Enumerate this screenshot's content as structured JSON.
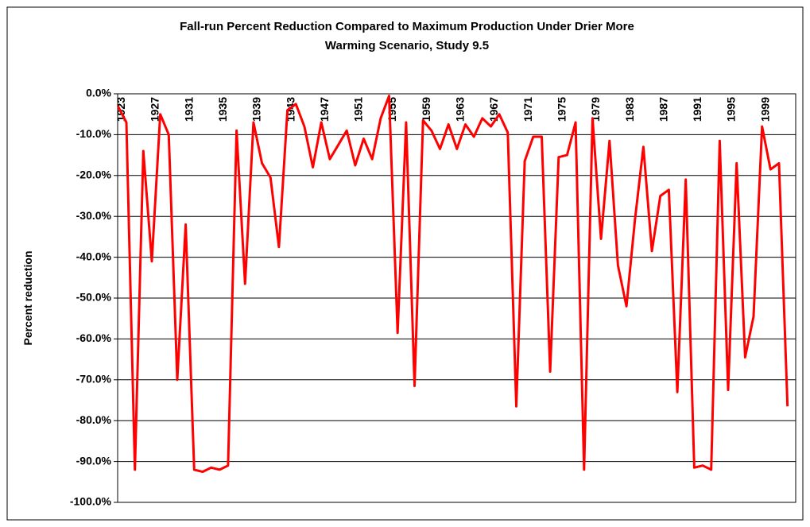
{
  "chart_data": {
    "type": "line",
    "title": [
      "Fall-run Percent Reduction Compared to Maximum Production Under Drier More",
      "Warming Scenario, Study 9.5"
    ],
    "y_label": "Percent reduction",
    "categories": [
      "1923",
      null,
      null,
      null,
      "1927",
      null,
      null,
      null,
      "1931",
      null,
      null,
      null,
      "1935",
      null,
      null,
      null,
      "1939",
      null,
      null,
      null,
      "1943",
      null,
      null,
      null,
      "1947",
      null,
      null,
      null,
      "1951",
      null,
      null,
      null,
      "1955",
      null,
      null,
      null,
      "1959",
      null,
      null,
      null,
      "1963",
      null,
      null,
      null,
      "1967",
      null,
      null,
      null,
      "1971",
      null,
      null,
      null,
      "1975",
      null,
      null,
      null,
      "1979",
      null,
      null,
      null,
      "1983",
      null,
      null,
      null,
      "1987",
      null,
      null,
      null,
      "1991",
      null,
      null,
      null,
      "1995",
      null,
      null,
      null,
      "1999",
      null,
      null,
      null
    ],
    "series": [
      {
        "name": "Percent reduction",
        "color": "#ff0000",
        "values": [
          -3,
          -7,
          -92,
          -14,
          -41,
          -5,
          -10,
          -70,
          -32,
          -92,
          -92.5,
          -91.5,
          -92,
          -91,
          -9,
          -46.5,
          -7,
          -17,
          -20.5,
          -37.5,
          -4,
          -2.5,
          -8,
          -18,
          -7,
          -16,
          -12.5,
          -9,
          -17.5,
          -11,
          -16,
          -6,
          -0.5,
          -58.5,
          -7,
          -71.5,
          -6.5,
          -9,
          -13.5,
          -7.5,
          -13.5,
          -7.5,
          -10.5,
          -6,
          -8,
          -5,
          -9.5,
          -76.5,
          -16.5,
          -10.5,
          -10.5,
          -68,
          -15.5,
          -15,
          -7,
          -92,
          -6,
          -35.5,
          -11.5,
          -42,
          -52,
          -31,
          -13,
          -38.5,
          -25,
          -23.5,
          -73,
          -21,
          -91.5,
          -91,
          -92,
          -11.5,
          -72.5,
          -17,
          -64.5,
          -54.5,
          -8,
          -18.5,
          -17,
          -76.5
        ]
      }
    ],
    "ylim": [
      -100,
      0
    ],
    "yticks": [
      {
        "value": 0,
        "label": "0.0%"
      },
      {
        "value": -10,
        "label": "-10.0%"
      },
      {
        "value": -20,
        "label": "-20.0%"
      },
      {
        "value": -30,
        "label": "-30.0%"
      },
      {
        "value": -40,
        "label": "-40.0%"
      },
      {
        "value": -50,
        "label": "-50.0%"
      },
      {
        "value": -60,
        "label": "-60.0%"
      },
      {
        "value": -70,
        "label": "-70.0%"
      },
      {
        "value": -80,
        "label": "-80.0%"
      },
      {
        "value": -90,
        "label": "-90.0%"
      },
      {
        "value": -100,
        "label": "-100.0%"
      }
    ],
    "grid": true
  }
}
